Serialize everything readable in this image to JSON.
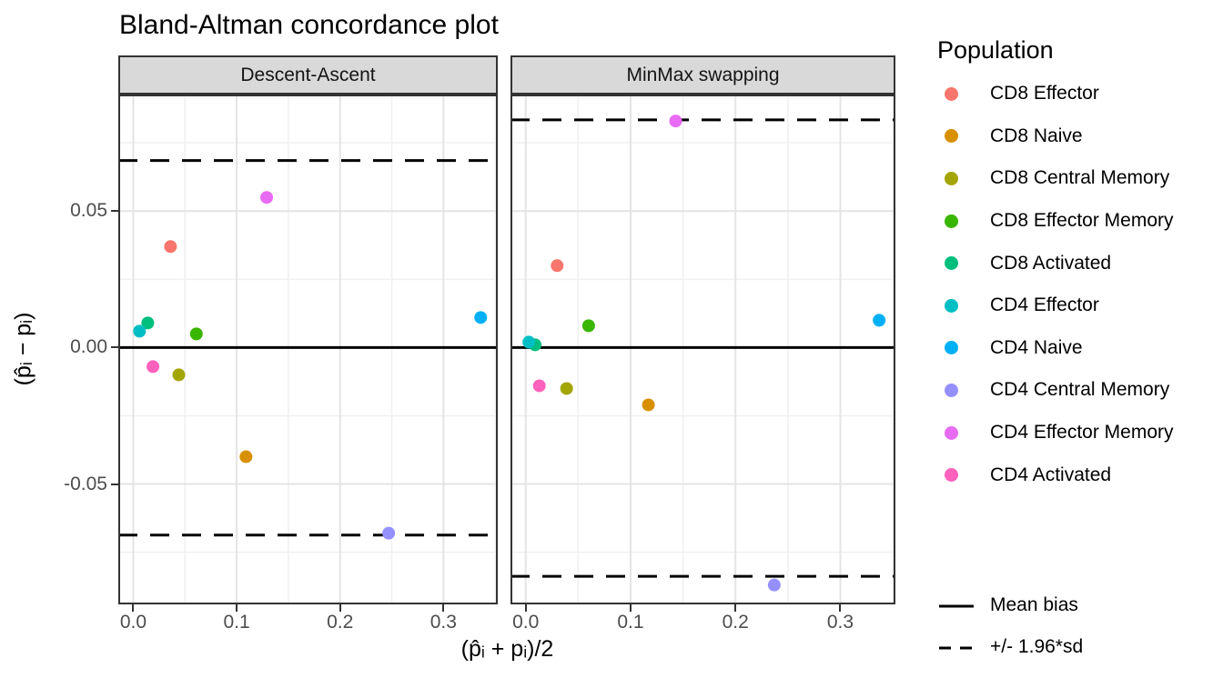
{
  "title": "Bland-Altman concordance plot",
  "axes": {
    "x_label": "(p̂ᵢ + pᵢ)/2",
    "y_label": "(p̂ᵢ − pᵢ)",
    "x_ticks": [
      {
        "label": "0.0",
        "value": 0.0
      },
      {
        "label": "0.1",
        "value": 0.1
      },
      {
        "label": "0.2",
        "value": 0.2
      },
      {
        "label": "0.3",
        "value": 0.3
      }
    ],
    "y_ticks": [
      {
        "label": "0.05",
        "value": 0.05
      },
      {
        "label": "0.00",
        "value": 0.0
      },
      {
        "label": "-0.05",
        "value": -0.05
      }
    ],
    "x_minor": [
      0.05,
      0.15,
      0.25,
      0.35
    ],
    "y_minor": [
      0.075,
      0.025,
      -0.025,
      -0.075
    ]
  },
  "legend": {
    "title": "Population",
    "items": [
      {
        "label": "CD8 Effector",
        "color": "#F8766D"
      },
      {
        "label": "CD8 Naive",
        "color": "#D89000"
      },
      {
        "label": "CD8 Central Memory",
        "color": "#A3A500"
      },
      {
        "label": "CD8 Effector Memory",
        "color": "#39B600"
      },
      {
        "label": "CD8 Activated",
        "color": "#00BF7D"
      },
      {
        "label": "CD4 Effector",
        "color": "#00BFC4"
      },
      {
        "label": "CD4 Naive",
        "color": "#00B0F6"
      },
      {
        "label": "CD4 Central Memory",
        "color": "#9590FF"
      },
      {
        "label": "CD4 Effector Memory",
        "color": "#E76BF3"
      },
      {
        "label": "CD4 Activated",
        "color": "#FF62BC"
      }
    ],
    "line_items": [
      {
        "label": "Mean bias",
        "style": "solid"
      },
      {
        "label": "+/- 1.96*sd",
        "style": "dashed"
      }
    ]
  },
  "chart_data": {
    "type": "scatter",
    "title": "Bland-Altman concordance plot",
    "xlabel": "(p̂ᵢ + pᵢ)/2",
    "ylabel": "(p̂ᵢ − pᵢ)",
    "xlim": [
      -0.0145,
      0.3525
    ],
    "ylim": [
      -0.0941,
      0.0927
    ],
    "grid": true,
    "legend_position": "right",
    "facets": [
      {
        "label": "Descent-Ascent",
        "mean_bias": 0.0,
        "upper_limit": 0.0685,
        "lower_limit": -0.0687,
        "points": [
          {
            "population": "CD8 Effector",
            "x": 0.036,
            "y": 0.037
          },
          {
            "population": "CD8 Naive",
            "x": 0.109,
            "y": -0.04
          },
          {
            "population": "CD8 Central Memory",
            "x": 0.044,
            "y": -0.01
          },
          {
            "population": "CD8 Effector Memory",
            "x": 0.061,
            "y": 0.005
          },
          {
            "population": "CD8 Activated",
            "x": 0.014,
            "y": 0.009
          },
          {
            "population": "CD4 Effector",
            "x": 0.006,
            "y": 0.006
          },
          {
            "population": "CD4 Naive",
            "x": 0.336,
            "y": 0.011
          },
          {
            "population": "CD4 Central Memory",
            "x": 0.247,
            "y": -0.068
          },
          {
            "population": "CD4 Effector Memory",
            "x": 0.129,
            "y": 0.055
          },
          {
            "population": "CD4 Activated",
            "x": 0.019,
            "y": -0.007
          }
        ]
      },
      {
        "label": "MinMax swapping",
        "mean_bias": 0.0,
        "upper_limit": 0.0834,
        "lower_limit": -0.0838,
        "points": [
          {
            "population": "CD8 Effector",
            "x": 0.03,
            "y": 0.03
          },
          {
            "population": "CD8 Naive",
            "x": 0.117,
            "y": -0.021
          },
          {
            "population": "CD8 Central Memory",
            "x": 0.039,
            "y": -0.015
          },
          {
            "population": "CD8 Effector Memory",
            "x": 0.06,
            "y": 0.008
          },
          {
            "population": "CD8 Activated",
            "x": 0.009,
            "y": 0.001
          },
          {
            "population": "CD4 Effector",
            "x": 0.003,
            "y": 0.002
          },
          {
            "population": "CD4 Naive",
            "x": 0.337,
            "y": 0.01
          },
          {
            "population": "CD4 Central Memory",
            "x": 0.237,
            "y": -0.087
          },
          {
            "population": "CD4 Effector Memory",
            "x": 0.143,
            "y": 0.083
          },
          {
            "population": "CD4 Activated",
            "x": 0.013,
            "y": -0.014
          }
        ]
      }
    ]
  }
}
